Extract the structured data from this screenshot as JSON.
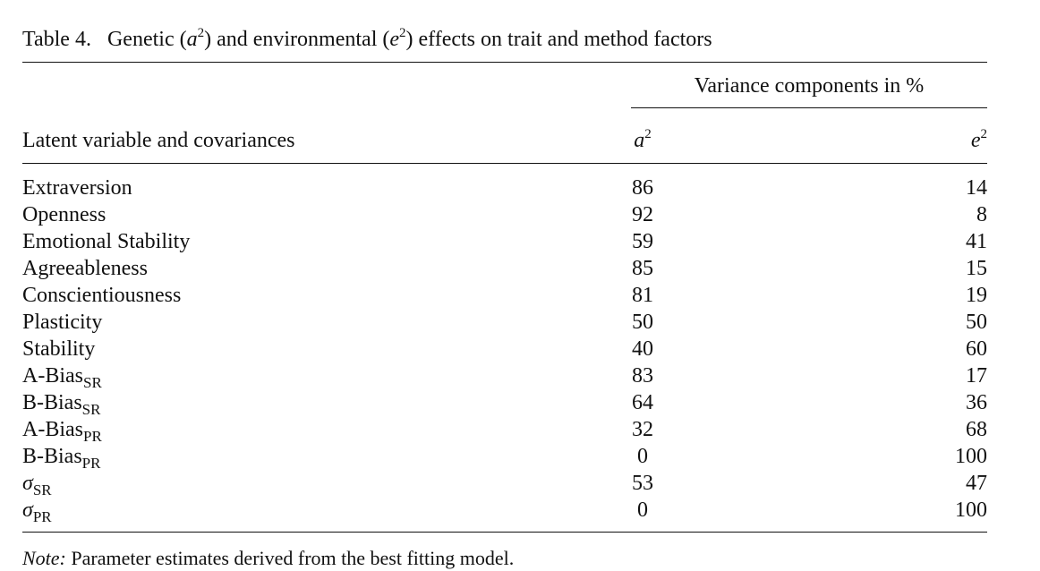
{
  "title": {
    "label": "Table 4.",
    "text": [
      "Genetic (",
      "a",
      "2",
      ") and environmental (",
      "e",
      "2",
      ") effects on trait and method factors"
    ]
  },
  "table": {
    "spanner": "Variance components in %",
    "row_header": "Latent variable and covariances",
    "columns": [
      [
        "a",
        "2"
      ],
      [
        "e",
        "2"
      ]
    ],
    "rows": [
      {
        "name": "Extraversion",
        "a2": 86,
        "e2": 14
      },
      {
        "name": "Openness",
        "a2": 92,
        "e2": 8
      },
      {
        "name": "Emotional Stability",
        "a2": 59,
        "e2": 41
      },
      {
        "name": "Agreeableness",
        "a2": 85,
        "e2": 15
      },
      {
        "name": "Conscientiousness",
        "a2": 81,
        "e2": 19
      },
      {
        "name": "Plasticity",
        "a2": 50,
        "e2": 50
      },
      {
        "name": "Stability",
        "a2": 40,
        "e2": 60
      },
      {
        "name": "A-Bias",
        "sub": "SR",
        "a2": 83,
        "e2": 17
      },
      {
        "name": "B-Bias",
        "sub": "SR",
        "a2": 64,
        "e2": 36
      },
      {
        "name": "A-Bias",
        "sub": "PR",
        "a2": 32,
        "e2": 68
      },
      {
        "name": "B-Bias",
        "sub": "PR",
        "a2": 0,
        "e2": 100
      },
      {
        "name": "σ",
        "sub": "SR",
        "a2": 53,
        "e2": 47
      },
      {
        "name": "σ",
        "sub": "PR",
        "a2": 0,
        "e2": 100
      }
    ]
  },
  "note": {
    "label": "Note:",
    "text": " Parameter estimates derived from the best fitting model."
  }
}
